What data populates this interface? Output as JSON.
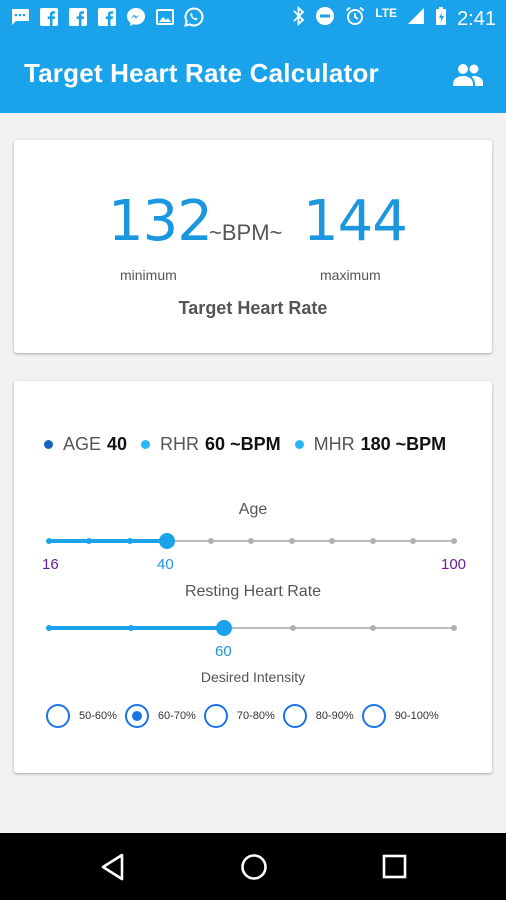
{
  "status_bar": {
    "time": "2:41",
    "network": "LTE",
    "left_icons": [
      "message-icon",
      "facebook-icon",
      "facebook-icon",
      "facebook-icon",
      "messenger-icon",
      "image-icon",
      "whatsapp-icon"
    ],
    "right_icons": [
      "bluetooth-icon",
      "do-not-disturb-icon",
      "alarm-icon",
      "signal-icon",
      "battery-icon"
    ]
  },
  "app_bar": {
    "title": "Target Heart Rate Calculator",
    "action_icon": "people-icon",
    "color": "#1aa3ea"
  },
  "result": {
    "min_bpm": "132",
    "max_bpm": "144",
    "bpm_separator": "~BPM~",
    "min_label": "minimum",
    "max_label": "maximum",
    "title": "Target Heart Rate",
    "accent": "#1a97de"
  },
  "legend": {
    "age_label": "AGE",
    "age_value": "40",
    "rhr_label": "RHR",
    "rhr_value": "60 ~BPM",
    "mhr_label": "MHR",
    "mhr_value": "180 ~BPM",
    "age_dot_color": "#1565c0",
    "rhr_dot_color": "#29b6f6",
    "mhr_dot_color": "#29b6f6"
  },
  "age_slider": {
    "label": "Age",
    "min_label": "16",
    "max_label": "100",
    "value_label": "40",
    "value": 40,
    "min": 16,
    "max": 100
  },
  "rhr_slider": {
    "label": "Resting Heart Rate",
    "value_label": "60",
    "value": 60
  },
  "intensity": {
    "label": "Desired Intensity",
    "options": [
      "50-60%",
      "60-70%",
      "70-80%",
      "80-90%",
      "90-100%"
    ],
    "selected": "60-70%"
  },
  "nav_bar": {
    "icons": [
      "back-icon",
      "home-icon",
      "recent-apps-icon"
    ]
  }
}
